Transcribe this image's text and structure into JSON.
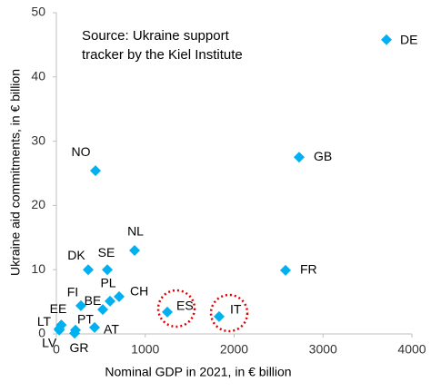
{
  "chart_data": {
    "type": "scatter",
    "annotation": [
      "Source: Ukraine support",
      "tracker by the Kiel Institute"
    ],
    "x_label": "Nominal GDP in 2021, in € billion",
    "y_label": "Ukraine aid commitments, in € billion",
    "xlim": [
      0,
      4000
    ],
    "xticks": [
      0,
      1000,
      2000,
      3000,
      4000
    ],
    "ylim": [
      0,
      50
    ],
    "yticks": [
      0,
      10,
      20,
      30,
      40,
      50
    ],
    "grid": false,
    "series": [
      {
        "color": "#00b0f0",
        "labels": [
          "DE",
          "GB",
          "FR",
          "NO",
          "NL",
          "DK",
          "SE",
          "FI",
          "PL",
          "CH",
          "BE",
          "ES",
          "IT",
          "AT",
          "EE",
          "LT",
          "LV",
          "PT",
          "GR"
        ],
        "x": [
          3714,
          2731,
          2578,
          440,
          880,
          358,
          573,
          276,
          604,
          706,
          522,
          1248,
          1831,
          430,
          31,
          56,
          33,
          215,
          205
        ],
        "values": [
          45.8,
          27.5,
          9.9,
          25.4,
          13.0,
          10.0,
          10.0,
          4.4,
          5.1,
          5.8,
          3.8,
          3.4,
          2.7,
          1.0,
          0.8,
          1.4,
          0.6,
          0.6,
          0.1
        ]
      }
    ]
  }
}
